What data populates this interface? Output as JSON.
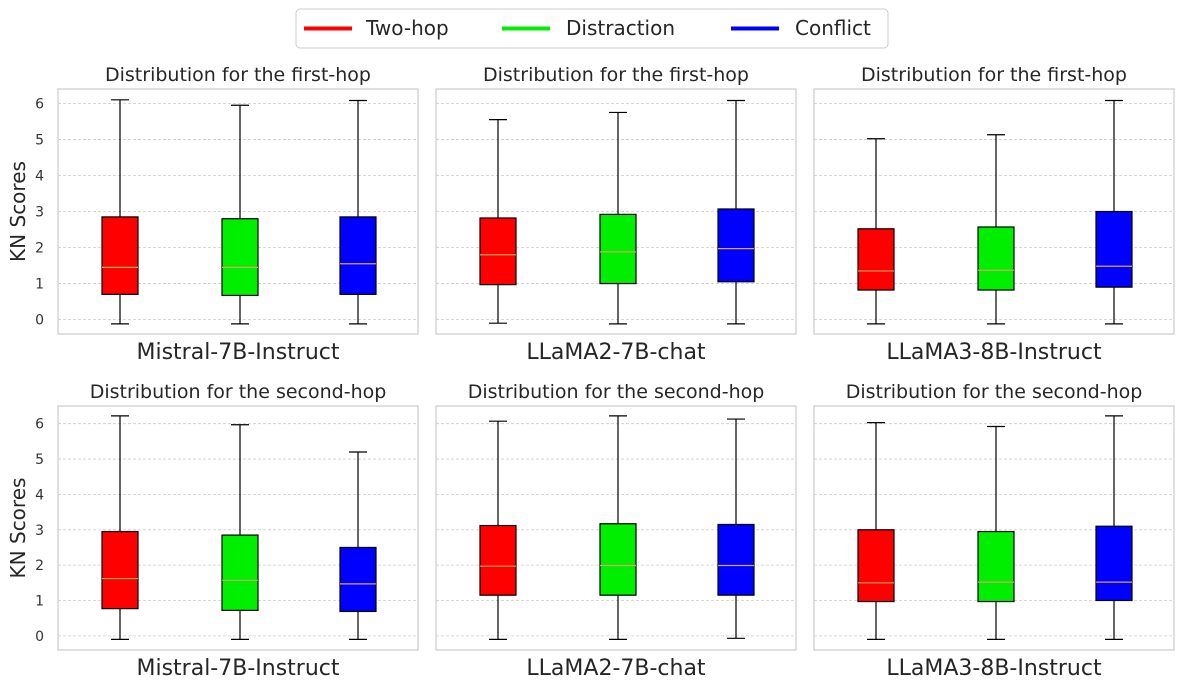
{
  "legend": {
    "entries": [
      {
        "label": "Two-hop",
        "color": "#ff0000"
      },
      {
        "label": "Distraction",
        "color": "#00ee00"
      },
      {
        "label": "Conflict",
        "color": "#0000ff"
      }
    ]
  },
  "chart_data": [
    {
      "type": "box",
      "title": "Distribution for the first-hop",
      "xlabel": "Mistral-7B-Instruct",
      "ylabel": "KN Scores",
      "ylim": [
        -0.4,
        6.4
      ],
      "yticks": [
        0,
        1,
        2,
        3,
        4,
        5,
        6
      ],
      "show_ytick_labels": true,
      "grid": true,
      "series": [
        {
          "name": "Two-hop",
          "whislo": -0.12,
          "q1": 0.7,
          "median": 1.45,
          "q3": 2.85,
          "whishi": 6.1
        },
        {
          "name": "Distraction",
          "whislo": -0.12,
          "q1": 0.67,
          "median": 1.45,
          "q3": 2.8,
          "whishi": 5.95
        },
        {
          "name": "Conflict",
          "whislo": -0.12,
          "q1": 0.7,
          "median": 1.55,
          "q3": 2.85,
          "whishi": 6.08
        }
      ]
    },
    {
      "type": "box",
      "title": "Distribution for the first-hop",
      "xlabel": "LLaMA2-7B-chat",
      "ylabel": "",
      "ylim": [
        -0.4,
        6.4
      ],
      "yticks": [
        0,
        1,
        2,
        3,
        4,
        5,
        6
      ],
      "show_ytick_labels": false,
      "grid": true,
      "series": [
        {
          "name": "Two-hop",
          "whislo": -0.1,
          "q1": 0.97,
          "median": 1.8,
          "q3": 2.82,
          "whishi": 5.55
        },
        {
          "name": "Distraction",
          "whislo": -0.12,
          "q1": 1.0,
          "median": 1.88,
          "q3": 2.92,
          "whishi": 5.75
        },
        {
          "name": "Conflict",
          "whislo": -0.12,
          "q1": 1.05,
          "median": 1.97,
          "q3": 3.07,
          "whishi": 6.08
        }
      ]
    },
    {
      "type": "box",
      "title": "Distribution for the first-hop",
      "xlabel": "LLaMA3-8B-Instruct",
      "ylabel": "",
      "ylim": [
        -0.4,
        6.4
      ],
      "yticks": [
        0,
        1,
        2,
        3,
        4,
        5,
        6
      ],
      "show_ytick_labels": false,
      "grid": true,
      "series": [
        {
          "name": "Two-hop",
          "whislo": -0.12,
          "q1": 0.82,
          "median": 1.35,
          "q3": 2.52,
          "whishi": 5.02
        },
        {
          "name": "Distraction",
          "whislo": -0.12,
          "q1": 0.82,
          "median": 1.37,
          "q3": 2.57,
          "whishi": 5.13
        },
        {
          "name": "Conflict",
          "whislo": -0.12,
          "q1": 0.9,
          "median": 1.48,
          "q3": 3.0,
          "whishi": 6.08
        }
      ]
    },
    {
      "type": "box",
      "title": "Distribution for the second-hop",
      "xlabel": "Mistral-7B-Instruct",
      "ylabel": "KN Scores",
      "ylim": [
        -0.4,
        6.5
      ],
      "yticks": [
        0,
        1,
        2,
        3,
        4,
        5,
        6
      ],
      "show_ytick_labels": true,
      "grid": true,
      "series": [
        {
          "name": "Two-hop",
          "whislo": -0.1,
          "q1": 0.77,
          "median": 1.62,
          "q3": 2.95,
          "whishi": 6.22
        },
        {
          "name": "Distraction",
          "whislo": -0.1,
          "q1": 0.72,
          "median": 1.57,
          "q3": 2.85,
          "whishi": 5.97
        },
        {
          "name": "Conflict",
          "whislo": -0.1,
          "q1": 0.69,
          "median": 1.47,
          "q3": 2.5,
          "whishi": 5.2
        }
      ]
    },
    {
      "type": "box",
      "title": "Distribution for the second-hop",
      "xlabel": "LLaMA2-7B-chat",
      "ylabel": "",
      "ylim": [
        -0.4,
        6.5
      ],
      "yticks": [
        0,
        1,
        2,
        3,
        4,
        5,
        6
      ],
      "show_ytick_labels": false,
      "grid": true,
      "series": [
        {
          "name": "Two-hop",
          "whislo": -0.1,
          "q1": 1.15,
          "median": 1.97,
          "q3": 3.12,
          "whishi": 6.07
        },
        {
          "name": "Distraction",
          "whislo": -0.1,
          "q1": 1.15,
          "median": 1.99,
          "q3": 3.17,
          "whishi": 6.22
        },
        {
          "name": "Conflict",
          "whislo": -0.07,
          "q1": 1.15,
          "median": 1.99,
          "q3": 3.15,
          "whishi": 6.13
        }
      ]
    },
    {
      "type": "box",
      "title": "Distribution for the second-hop",
      "xlabel": "LLaMA3-8B-Instruct",
      "ylabel": "",
      "ylim": [
        -0.4,
        6.5
      ],
      "yticks": [
        0,
        1,
        2,
        3,
        4,
        5,
        6
      ],
      "show_ytick_labels": false,
      "grid": true,
      "series": [
        {
          "name": "Two-hop",
          "whislo": -0.1,
          "q1": 0.97,
          "median": 1.5,
          "q3": 3.0,
          "whishi": 6.03
        },
        {
          "name": "Distraction",
          "whislo": -0.1,
          "q1": 0.97,
          "median": 1.52,
          "q3": 2.95,
          "whishi": 5.92
        },
        {
          "name": "Conflict",
          "whislo": -0.1,
          "q1": 1.0,
          "median": 1.52,
          "q3": 3.1,
          "whishi": 6.22
        }
      ]
    }
  ]
}
